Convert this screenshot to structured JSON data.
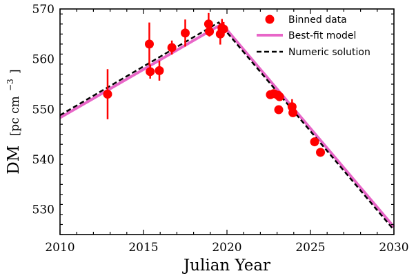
{
  "chart_data": {
    "type": "scatter",
    "title": "",
    "xlabel": "Julian Year",
    "ylabel": "DM",
    "ylabel_unit": "[pc cm",
    "ylabel_unit_exponent": "−3",
    "ylabel_unit_close": "]",
    "xlim": [
      2010,
      2030
    ],
    "ylim": [
      525,
      570
    ],
    "xticks": [
      2010,
      2015,
      2020,
      2025,
      2030
    ],
    "xtick_labels": [
      "2010",
      "2015",
      "2020",
      "2025",
      "2030"
    ],
    "yticks": [
      530,
      540,
      550,
      560,
      570
    ],
    "ytick_labels": [
      "530",
      "540",
      "550",
      "560",
      "570"
    ],
    "grid": false,
    "legend_position": "top-right",
    "legend": {
      "binned_label": "Binned data",
      "model_label": "Best-fit model",
      "numeric_label": "Numeric solution"
    },
    "colors": {
      "binned": "#ff0000",
      "model": "#e866c8",
      "numeric": "#000000"
    },
    "series": [
      {
        "name": "Binned data",
        "kind": "errorbar",
        "points": [
          {
            "x": 2012.85,
            "y": 553.0,
            "err": 5.0
          },
          {
            "x": 2015.35,
            "y": 563.0,
            "err": 4.3
          },
          {
            "x": 2015.4,
            "y": 557.5,
            "err": 1.4
          },
          {
            "x": 2015.95,
            "y": 557.7,
            "err": 2.0
          },
          {
            "x": 2016.7,
            "y": 562.3,
            "err": 1.4
          },
          {
            "x": 2017.5,
            "y": 565.2,
            "err": 2.7
          },
          {
            "x": 2018.9,
            "y": 567.0,
            "err": 2.2
          },
          {
            "x": 2018.95,
            "y": 565.5,
            "err": 1.0
          },
          {
            "x": 2019.6,
            "y": 565.0,
            "err": 2.1
          },
          {
            "x": 2019.7,
            "y": 566.2,
            "err": 1.8
          },
          {
            "x": 2019.8,
            "y": 566.0,
            "err": 1.4
          },
          {
            "x": 2022.6,
            "y": 552.9,
            "err": 0.5
          },
          {
            "x": 2022.8,
            "y": 553.1,
            "err": 0.5
          },
          {
            "x": 2023.05,
            "y": 552.8,
            "err": 0.5
          },
          {
            "x": 2023.15,
            "y": 552.5,
            "err": 0.5
          },
          {
            "x": 2023.1,
            "y": 549.9,
            "err": 0.5
          },
          {
            "x": 2023.9,
            "y": 550.5,
            "err": 1.5
          },
          {
            "x": 2023.95,
            "y": 549.3,
            "err": 0.6
          },
          {
            "x": 2025.25,
            "y": 543.5,
            "err": 0.4
          },
          {
            "x": 2025.6,
            "y": 541.4,
            "err": 0.4
          }
        ]
      },
      {
        "name": "Best-fit model",
        "kind": "line",
        "x": [
          2010,
          2019.7,
          2030
        ],
        "y": [
          548.3,
          567.0,
          526.5
        ]
      },
      {
        "name": "Numeric solution",
        "kind": "dashed-line",
        "x": [
          2010,
          2019.5,
          2030
        ],
        "y": [
          548.8,
          567.3,
          525.9
        ]
      }
    ]
  }
}
